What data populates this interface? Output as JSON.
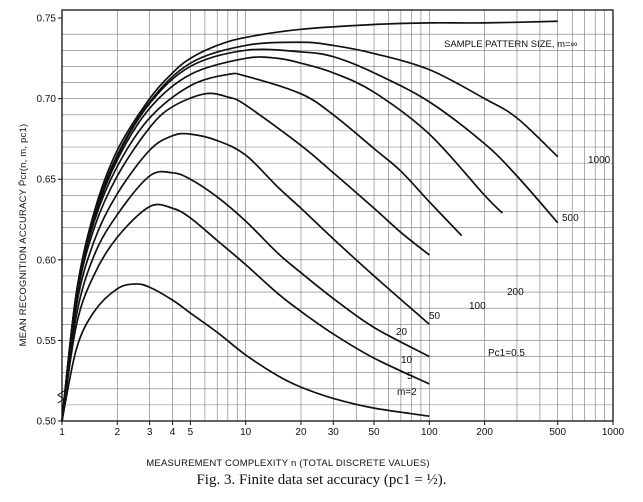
{
  "chart_data": {
    "type": "line",
    "title": "SAMPLE PATTERN SIZE, m=∞",
    "xlabel": "MEASUREMENT COMPLEXITY n (TOTAL DISCRETE VALUES)",
    "ylabel": "MEAN RECOGNITION ACCURACY P̄cr(n, m, pc1)",
    "xscale": "log",
    "xlim": [
      1,
      1000
    ],
    "ylim": [
      0.5,
      0.755
    ],
    "grid": true,
    "x_ticks": [
      1,
      2,
      3,
      4,
      5,
      10,
      20,
      30,
      50,
      100,
      200,
      500,
      1000
    ],
    "x_tick_labels": [
      "1",
      "2",
      "3",
      "4",
      "5",
      "10",
      "20",
      "30",
      "50",
      "100",
      "200",
      "500",
      "1000"
    ],
    "y_ticks": [
      0.5,
      0.55,
      0.6,
      0.65,
      0.7,
      0.75
    ],
    "y_tick_labels": [
      "0.50",
      "0.55",
      "0.60",
      "0.65",
      "0.70",
      "0.75"
    ],
    "annotation": "Pc1=0.5",
    "series": [
      {
        "name": "SAMPLE PATTERN SIZE, m=∞",
        "x": [
          1,
          1.2,
          1.5,
          2,
          3,
          4,
          5,
          7,
          10,
          20,
          50,
          100,
          200,
          500
        ],
        "y": [
          0.5,
          0.58,
          0.63,
          0.668,
          0.7,
          0.716,
          0.725,
          0.733,
          0.738,
          0.743,
          0.746,
          0.747,
          0.747,
          0.748
        ]
      },
      {
        "name": "1000",
        "x": [
          1,
          1.2,
          1.5,
          2,
          3,
          5,
          10,
          20,
          30,
          50,
          100,
          200,
          300,
          500
        ],
        "y": [
          0.5,
          0.58,
          0.628,
          0.665,
          0.698,
          0.722,
          0.733,
          0.735,
          0.733,
          0.728,
          0.718,
          0.7,
          0.688,
          0.664
        ]
      },
      {
        "name": "500",
        "x": [
          1,
          1.2,
          1.5,
          2,
          3,
          5,
          10,
          20,
          30,
          50,
          100,
          200,
          300,
          500
        ],
        "y": [
          0.5,
          0.58,
          0.627,
          0.664,
          0.697,
          0.72,
          0.73,
          0.729,
          0.726,
          0.716,
          0.698,
          0.672,
          0.652,
          0.623
        ]
      },
      {
        "name": "200",
        "x": [
          1,
          1.2,
          1.5,
          2,
          3,
          5,
          10,
          15,
          20,
          30,
          50,
          100,
          200,
          250
        ],
        "y": [
          0.5,
          0.579,
          0.626,
          0.662,
          0.694,
          0.715,
          0.725,
          0.725,
          0.722,
          0.716,
          0.704,
          0.678,
          0.64,
          0.629
        ]
      },
      {
        "name": "100",
        "x": [
          1,
          1.2,
          1.5,
          2,
          3,
          5,
          8,
          10,
          20,
          30,
          50,
          70,
          100,
          150
        ],
        "y": [
          0.5,
          0.578,
          0.624,
          0.658,
          0.688,
          0.708,
          0.715,
          0.714,
          0.703,
          0.69,
          0.669,
          0.655,
          0.636,
          0.615
        ]
      },
      {
        "name": "50",
        "x": [
          1,
          1.2,
          1.5,
          2,
          3,
          4,
          6,
          8,
          10,
          20,
          30,
          50,
          70,
          100
        ],
        "y": [
          0.5,
          0.576,
          0.62,
          0.652,
          0.682,
          0.695,
          0.703,
          0.701,
          0.696,
          0.671,
          0.654,
          0.632,
          0.617,
          0.603
        ]
      },
      {
        "name": "20",
        "x": [
          1,
          1.2,
          1.5,
          2,
          3,
          4,
          5,
          7,
          10,
          15,
          20,
          30,
          50,
          100
        ],
        "y": [
          0.5,
          0.572,
          0.612,
          0.641,
          0.668,
          0.677,
          0.678,
          0.674,
          0.665,
          0.645,
          0.632,
          0.613,
          0.59,
          0.56
        ]
      },
      {
        "name": "10",
        "x": [
          1,
          1.2,
          1.5,
          2,
          3,
          4,
          5,
          7,
          10,
          15,
          20,
          30,
          50,
          100
        ],
        "y": [
          0.5,
          0.566,
          0.603,
          0.628,
          0.652,
          0.654,
          0.65,
          0.639,
          0.624,
          0.604,
          0.592,
          0.576,
          0.558,
          0.54
        ]
      },
      {
        "name": "5",
        "x": [
          1,
          1.2,
          1.5,
          2,
          3,
          4,
          5,
          7,
          10,
          15,
          20,
          30,
          50,
          100
        ],
        "y": [
          0.5,
          0.56,
          0.591,
          0.614,
          0.633,
          0.632,
          0.626,
          0.612,
          0.597,
          0.579,
          0.568,
          0.554,
          0.539,
          0.523
        ]
      },
      {
        "name": "m=2",
        "x": [
          1,
          1.2,
          1.5,
          2,
          2.5,
          3,
          4,
          5,
          7,
          10,
          15,
          20,
          30,
          50,
          100
        ],
        "y": [
          0.5,
          0.545,
          0.568,
          0.582,
          0.585,
          0.583,
          0.575,
          0.567,
          0.555,
          0.541,
          0.528,
          0.521,
          0.514,
          0.508,
          0.503
        ]
      }
    ]
  },
  "curve_labels": [
    "1000",
    "500",
    "200",
    "100",
    "50",
    "20",
    "10",
    "5",
    "m=2"
  ],
  "caption": "Fig. 3.   Finite data set accuracy (pc1 = ½)."
}
